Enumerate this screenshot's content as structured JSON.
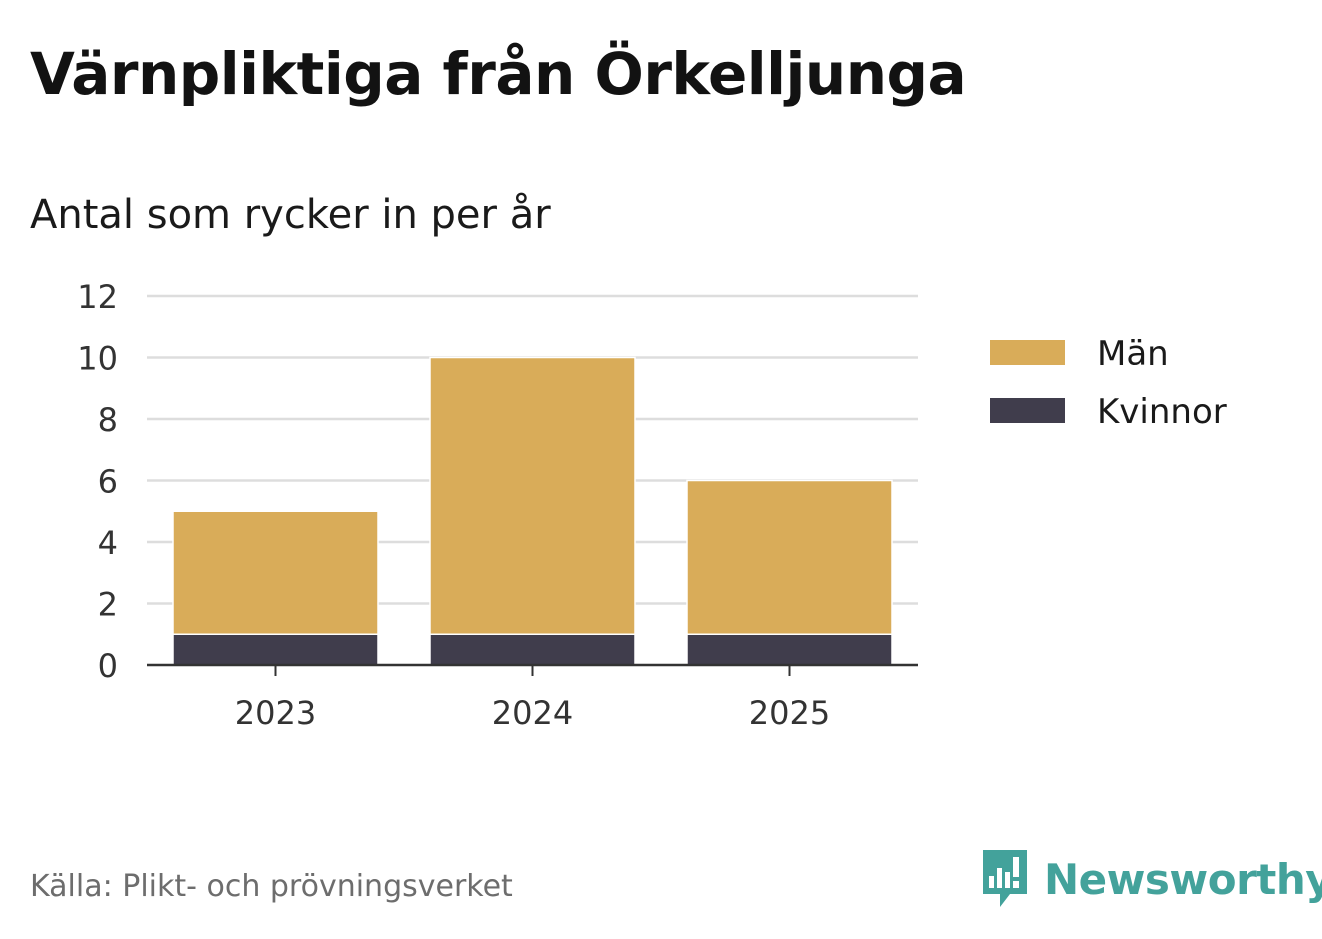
{
  "title": "Värnpliktiga från Örkelljunga",
  "subtitle": "Antal som rycker in per år",
  "source": "Källa: Plikt- och prövningsverket",
  "brand": {
    "name": "Newsworthy",
    "icon": "bar-chart-speech-bubble-icon",
    "color": "#43a29b"
  },
  "chart_data": {
    "type": "bar",
    "stacked": true,
    "categories": [
      "2023",
      "2024",
      "2025"
    ],
    "series": [
      {
        "name": "Kvinnor",
        "values": [
          1,
          1,
          1
        ],
        "color": "#403d4c"
      },
      {
        "name": "Män",
        "values": [
          4,
          9,
          5
        ],
        "color": "#d9ac59"
      }
    ],
    "yticks": [
      "0",
      "2",
      "4",
      "6",
      "8",
      "10",
      "12"
    ],
    "ylim": [
      0,
      12
    ],
    "grid": true,
    "legend": [
      "Män",
      "Kvinnor"
    ],
    "legend_position": "right"
  }
}
